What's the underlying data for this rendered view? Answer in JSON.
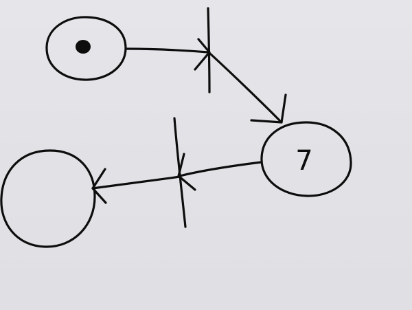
{
  "diagram": {
    "kind": "petri-net",
    "ink_color": "#0d0d0d",
    "paper_color": "#e3e3e7",
    "places": [
      {
        "id": "p1",
        "tokens": 1,
        "label": ""
      },
      {
        "id": "p2",
        "tokens": 0,
        "label": "7"
      },
      {
        "id": "p3",
        "tokens": 0,
        "label": ""
      }
    ],
    "transitions": [
      {
        "id": "t1"
      },
      {
        "id": "t2"
      }
    ],
    "arcs": [
      {
        "from": "p1",
        "to": "t1"
      },
      {
        "from": "t1",
        "to": "p2"
      },
      {
        "from": "p2",
        "to": "t2"
      },
      {
        "from": "t2",
        "to": "p3"
      }
    ]
  }
}
